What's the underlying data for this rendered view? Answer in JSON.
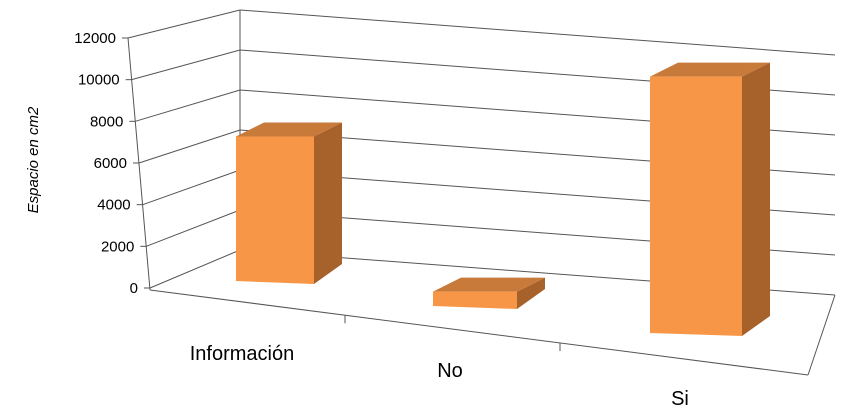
{
  "chart_data": {
    "type": "bar",
    "categories": [
      "Información",
      "No",
      "Si"
    ],
    "values": [
      6800,
      800,
      9500
    ],
    "xlabel": "",
    "ylabel": "Espacio en cm2",
    "ylim": [
      0,
      12000
    ],
    "yticks": [
      0,
      2000,
      4000,
      6000,
      8000,
      10000,
      12000
    ],
    "grid": true,
    "projection": "3d",
    "colors": {
      "bar_front": "#F79646",
      "bar_top": "#C87A3A",
      "bar_side": "#A7612B",
      "grid": "#555555"
    }
  }
}
